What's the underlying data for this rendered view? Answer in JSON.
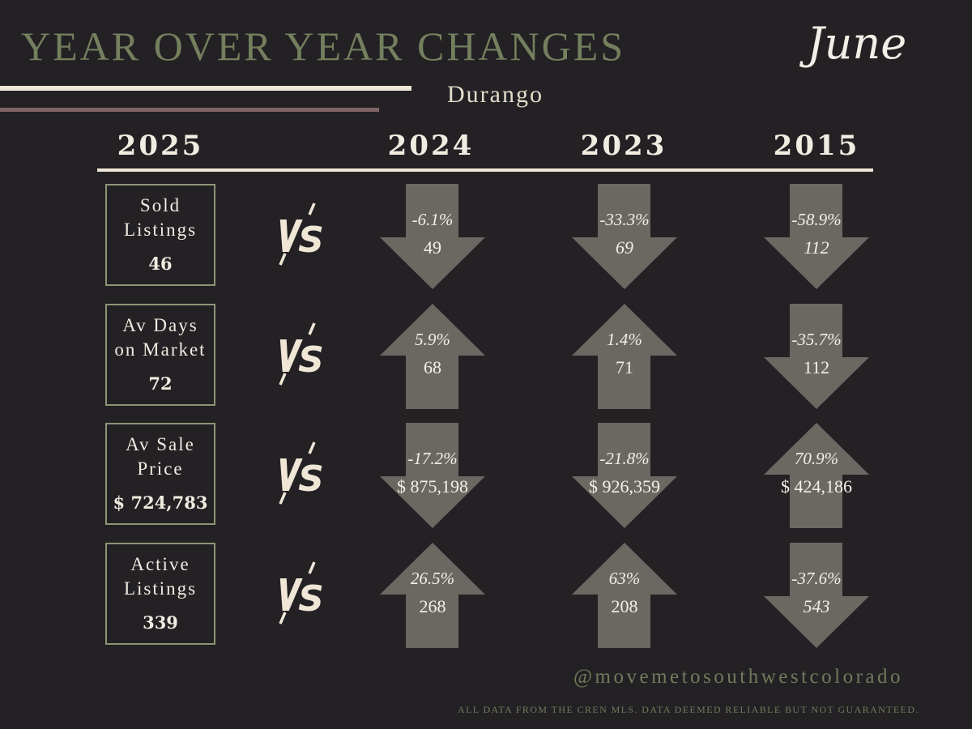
{
  "header": {
    "title": "YEAR OVER YEAR CHANGES",
    "month": "June",
    "city": "Durango"
  },
  "colors": {
    "background": "#232124",
    "title_green": "#747f5e",
    "cream": "#efe6d6",
    "mauve_rule": "#7e6565",
    "arrow_gray": "#6b6762",
    "box_border": "#8e9476"
  },
  "years": {
    "current": "2025",
    "compare": [
      "2024",
      "2023",
      "2015"
    ]
  },
  "vs_label": "VS",
  "metrics": [
    {
      "label_lines": [
        "Sold",
        "Listings"
      ],
      "value": "46",
      "comparisons": [
        {
          "pct": "-6.1%",
          "value": "49",
          "direction": "down",
          "value_italic": false
        },
        {
          "pct": "-33.3%",
          "value": "69",
          "direction": "down",
          "value_italic": true
        },
        {
          "pct": "-58.9%",
          "value": "112",
          "direction": "down",
          "value_italic": true
        }
      ]
    },
    {
      "label_lines": [
        "Av Days",
        "on Market"
      ],
      "value": "72",
      "comparisons": [
        {
          "pct": "5.9%",
          "value": "68",
          "direction": "up",
          "value_italic": false
        },
        {
          "pct": "1.4%",
          "value": "71",
          "direction": "up",
          "value_italic": false
        },
        {
          "pct": "-35.7%",
          "value": "112",
          "direction": "down",
          "value_italic": false
        }
      ]
    },
    {
      "label_lines": [
        "Av Sale",
        "Price"
      ],
      "value": "$ 724,783",
      "comparisons": [
        {
          "pct": "-17.2%",
          "value": "$ 875,198",
          "direction": "down",
          "value_italic": false
        },
        {
          "pct": "-21.8%",
          "value": "$ 926,359",
          "direction": "down",
          "value_italic": false
        },
        {
          "pct": "70.9%",
          "value": "$ 424,186",
          "direction": "up",
          "value_italic": false
        }
      ]
    },
    {
      "label_lines": [
        "Active",
        "Listings"
      ],
      "value": "339",
      "comparisons": [
        {
          "pct": "26.5%",
          "value": "268",
          "direction": "up",
          "value_italic": false
        },
        {
          "pct": "63%",
          "value": "208",
          "direction": "up",
          "value_italic": false
        },
        {
          "pct": "-37.6%",
          "value": "543",
          "direction": "down",
          "value_italic": true
        }
      ]
    }
  ],
  "footer": {
    "handle": "@movemetosouthwestcolorado",
    "disclaimer": "ALL DATA FROM THE CREN MLS. DATA DEEMED RELIABLE BUT NOT GUARANTEED."
  }
}
